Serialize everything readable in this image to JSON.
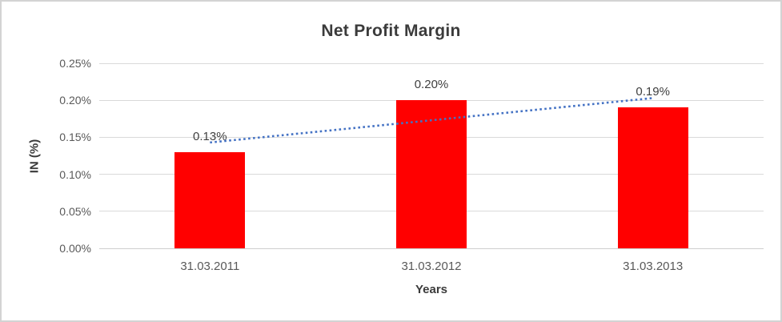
{
  "chart_data": {
    "type": "bar",
    "title": "Net Profit Margin",
    "xlabel": "Years",
    "ylabel": "IN (%)",
    "categories": [
      "31.03.2011",
      "31.03.2012",
      "31.03.2013"
    ],
    "values": [
      0.13,
      0.2,
      0.19
    ],
    "value_labels": [
      "0.13%",
      "0.20%",
      "0.19%"
    ],
    "yticks": [
      0,
      0.05,
      0.1,
      0.15,
      0.2,
      0.25
    ],
    "ytick_labels": [
      "0.00%",
      "0.05%",
      "0.10%",
      "0.15%",
      "0.20%",
      "0.25%"
    ],
    "ylim": [
      0,
      0.25
    ],
    "grid": true,
    "legend": false,
    "bar_color": "#FF0000",
    "trendline": {
      "type": "linear",
      "style": "dotted",
      "color": "#4472C4",
      "start_value": 0.143,
      "end_value": 0.203
    },
    "colors": {
      "gridline": "#D9D9D9",
      "axis_line": "#CFCFCF",
      "title_text": "#3B3B3B",
      "tick_text": "#595959",
      "label_text": "#404040",
      "frame_border": "#D3D3D3",
      "background": "#FFFFFF"
    }
  }
}
